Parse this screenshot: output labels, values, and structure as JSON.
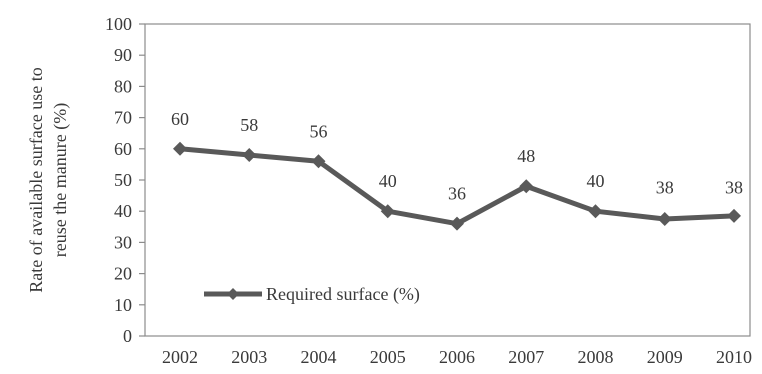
{
  "chart_data": {
    "type": "line",
    "title": "",
    "xlabel": "",
    "ylabel": "Rate of available surface use to reuse the manure (%)",
    "ylabel_lines": [
      "Rate of available surface use to",
      "reuse the manure (%)"
    ],
    "categories": [
      "2002",
      "2003",
      "2004",
      "2005",
      "2006",
      "2007",
      "2008",
      "2009",
      "2010"
    ],
    "series": [
      {
        "name": "Required surface (%)",
        "values": [
          60,
          58,
          56,
          40,
          36,
          48,
          40,
          38,
          38
        ],
        "plotted_values": [
          60,
          58,
          56,
          40,
          36,
          48,
          40,
          37.5,
          38.5
        ],
        "color": "#595959",
        "marker": "diamond"
      }
    ],
    "ylim": [
      0,
      100
    ],
    "yticks": [
      0,
      10,
      20,
      30,
      40,
      50,
      60,
      70,
      80,
      90,
      100
    ],
    "grid": false,
    "legend_position": "bottom-left inside plot"
  }
}
